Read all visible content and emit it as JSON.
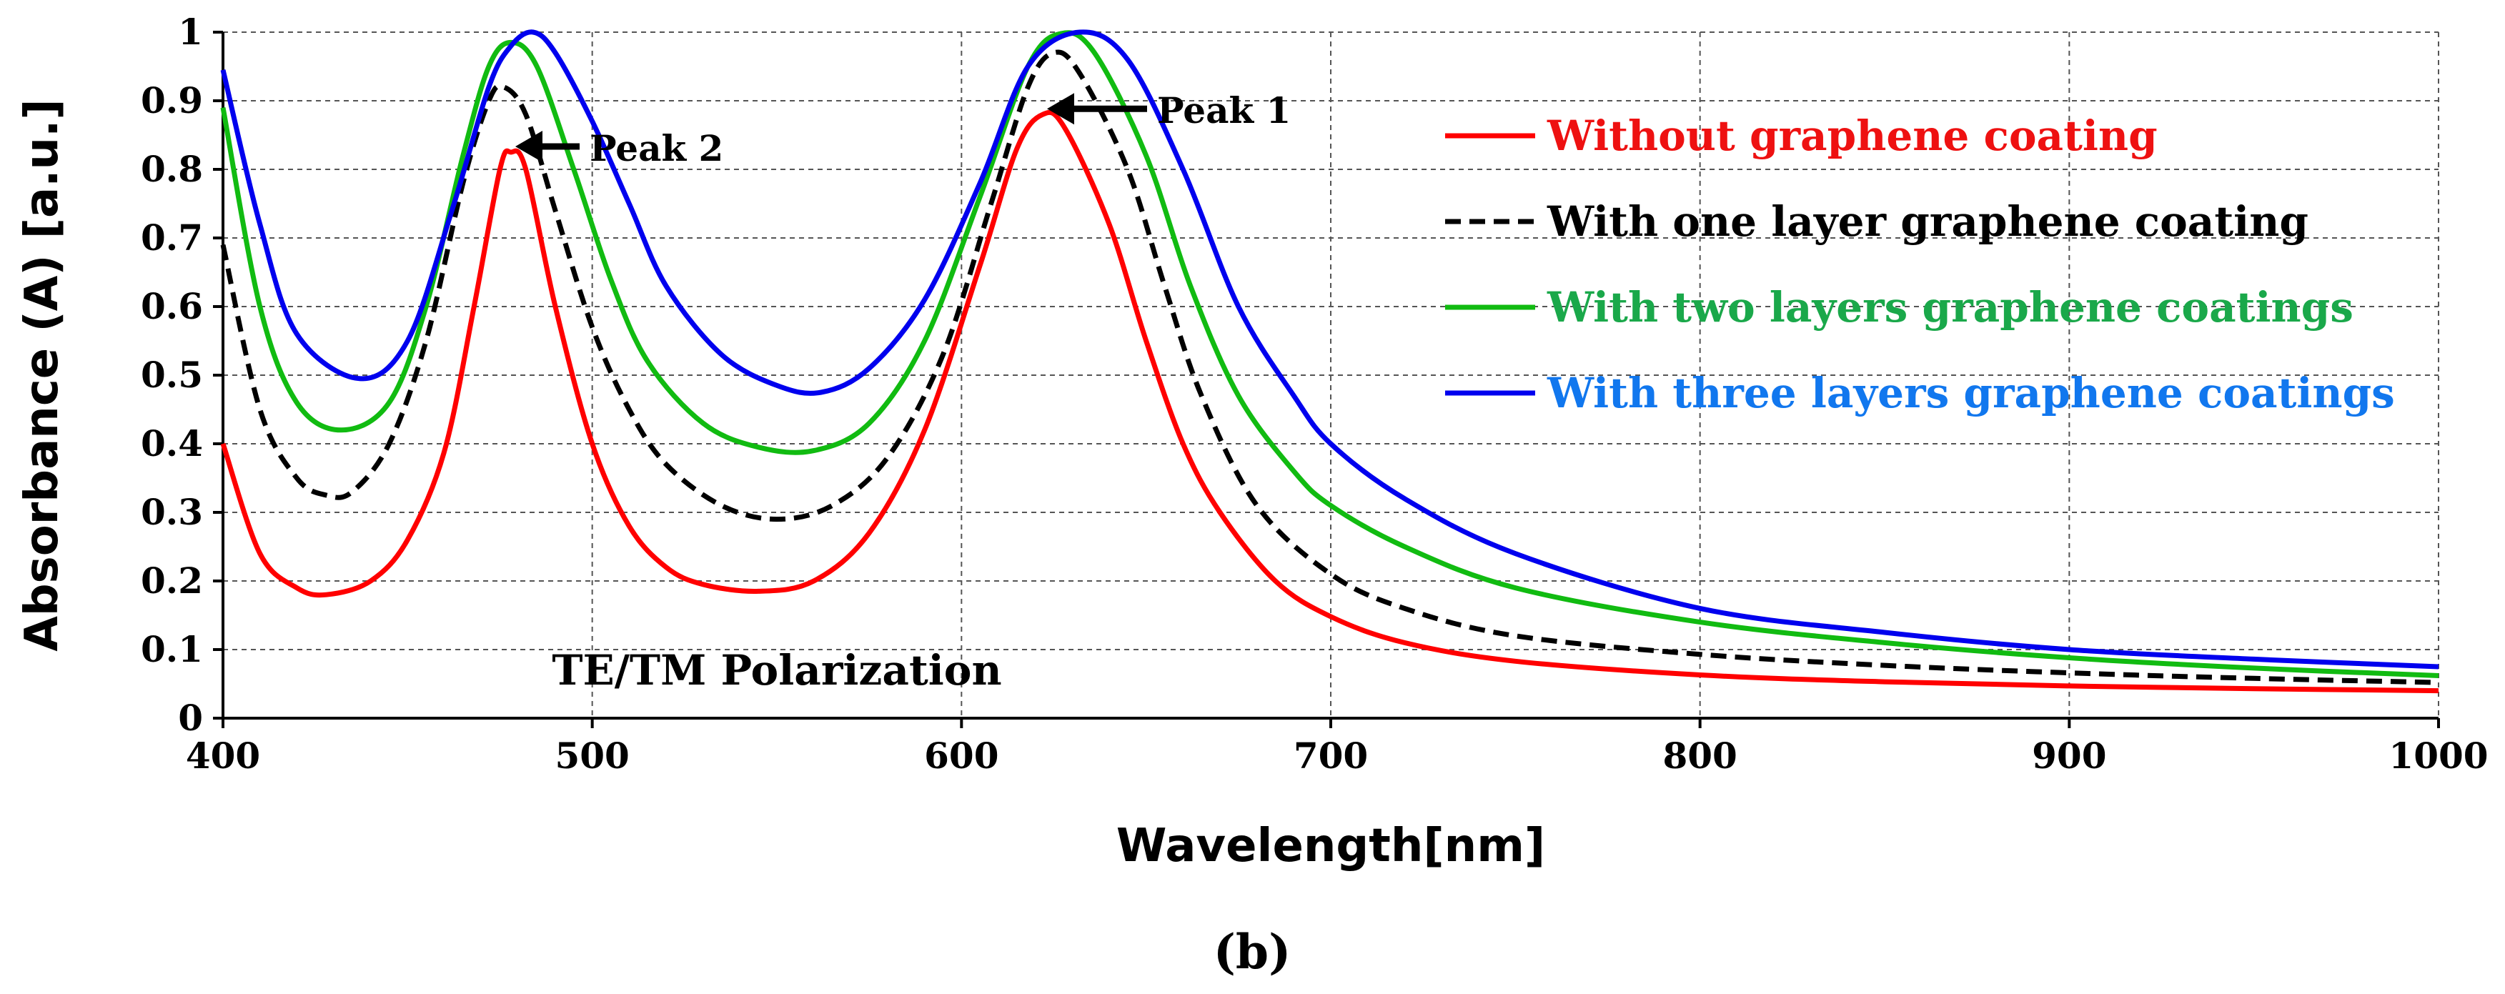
{
  "chart_data": {
    "type": "line",
    "title": "",
    "xlabel": "Wavelength[nm]",
    "ylabel": "Absorbance (A) [a.u.]",
    "xlim": [
      400,
      1000
    ],
    "ylim": [
      0,
      1
    ],
    "xticks": [
      400,
      500,
      600,
      700,
      800,
      900,
      1000
    ],
    "xtick_labels": [
      "400",
      "500",
      "600",
      "700",
      "800",
      "900",
      "1000"
    ],
    "yticks": [
      0,
      0.1,
      0.2,
      0.3,
      0.4,
      0.5,
      0.6,
      0.7,
      0.8,
      0.9,
      1
    ],
    "ytick_labels": [
      "0",
      "0.1",
      "0.2",
      "0.3",
      "0.4",
      "0.5",
      "0.6",
      "0.7",
      "0.8",
      "0.9",
      "1"
    ],
    "grid": true,
    "legend_position": "top-right",
    "series": [
      {
        "name": "Without graphene coating",
        "color": "#ff0000",
        "text_color": "#ee1111",
        "dashed": false,
        "points": [
          [
            400,
            0.4
          ],
          [
            410,
            0.24
          ],
          [
            420,
            0.19
          ],
          [
            428,
            0.18
          ],
          [
            440,
            0.2
          ],
          [
            450,
            0.26
          ],
          [
            460,
            0.39
          ],
          [
            468,
            0.6
          ],
          [
            475,
            0.8
          ],
          [
            478,
            0.825
          ],
          [
            482,
            0.8
          ],
          [
            490,
            0.6
          ],
          [
            500,
            0.4
          ],
          [
            510,
            0.28
          ],
          [
            520,
            0.22
          ],
          [
            530,
            0.195
          ],
          [
            545,
            0.185
          ],
          [
            560,
            0.2
          ],
          [
            575,
            0.27
          ],
          [
            590,
            0.42
          ],
          [
            605,
            0.66
          ],
          [
            615,
            0.83
          ],
          [
            622,
            0.88
          ],
          [
            628,
            0.86
          ],
          [
            640,
            0.72
          ],
          [
            650,
            0.55
          ],
          [
            660,
            0.4
          ],
          [
            670,
            0.3
          ],
          [
            685,
            0.2
          ],
          [
            700,
            0.148
          ],
          [
            720,
            0.11
          ],
          [
            750,
            0.083
          ],
          [
            800,
            0.063
          ],
          [
            850,
            0.053
          ],
          [
            900,
            0.047
          ],
          [
            950,
            0.043
          ],
          [
            1000,
            0.04
          ]
        ]
      },
      {
        "name": "With one layer graphene coating",
        "color": "#000000",
        "text_color": "#000000",
        "dashed": true,
        "points": [
          [
            400,
            0.69
          ],
          [
            410,
            0.45
          ],
          [
            420,
            0.35
          ],
          [
            428,
            0.325
          ],
          [
            435,
            0.33
          ],
          [
            445,
            0.4
          ],
          [
            455,
            0.55
          ],
          [
            465,
            0.78
          ],
          [
            472,
            0.9
          ],
          [
            476,
            0.92
          ],
          [
            482,
            0.88
          ],
          [
            490,
            0.74
          ],
          [
            500,
            0.57
          ],
          [
            510,
            0.45
          ],
          [
            520,
            0.37
          ],
          [
            535,
            0.31
          ],
          [
            550,
            0.29
          ],
          [
            565,
            0.31
          ],
          [
            580,
            0.38
          ],
          [
            595,
            0.53
          ],
          [
            608,
            0.75
          ],
          [
            618,
            0.92
          ],
          [
            625,
            0.97
          ],
          [
            632,
            0.94
          ],
          [
            645,
            0.8
          ],
          [
            655,
            0.63
          ],
          [
            665,
            0.47
          ],
          [
            680,
            0.31
          ],
          [
            700,
            0.21
          ],
          [
            720,
            0.16
          ],
          [
            750,
            0.12
          ],
          [
            800,
            0.093
          ],
          [
            850,
            0.077
          ],
          [
            900,
            0.066
          ],
          [
            950,
            0.058
          ],
          [
            1000,
            0.052
          ]
        ]
      },
      {
        "name": "With two layers graphene coatings",
        "color": "#11bb11",
        "text_color": "#1aa84a",
        "dashed": false,
        "points": [
          [
            400,
            0.89
          ],
          [
            410,
            0.6
          ],
          [
            420,
            0.46
          ],
          [
            432,
            0.42
          ],
          [
            445,
            0.46
          ],
          [
            455,
            0.6
          ],
          [
            465,
            0.82
          ],
          [
            472,
            0.95
          ],
          [
            478,
            0.985
          ],
          [
            485,
            0.95
          ],
          [
            495,
            0.8
          ],
          [
            505,
            0.64
          ],
          [
            515,
            0.52
          ],
          [
            530,
            0.43
          ],
          [
            545,
            0.395
          ],
          [
            560,
            0.39
          ],
          [
            575,
            0.43
          ],
          [
            590,
            0.55
          ],
          [
            605,
            0.76
          ],
          [
            618,
            0.95
          ],
          [
            627,
            0.998
          ],
          [
            636,
            0.97
          ],
          [
            650,
            0.82
          ],
          [
            662,
            0.63
          ],
          [
            675,
            0.47
          ],
          [
            690,
            0.36
          ],
          [
            700,
            0.31
          ],
          [
            720,
            0.25
          ],
          [
            750,
            0.19
          ],
          [
            800,
            0.14
          ],
          [
            850,
            0.11
          ],
          [
            900,
            0.088
          ],
          [
            950,
            0.073
          ],
          [
            1000,
            0.062
          ]
        ]
      },
      {
        "name": "With three layers graphene coatings",
        "color": "#0000ee",
        "text_color": "#1177ee",
        "dashed": false,
        "points": [
          [
            400,
            0.945
          ],
          [
            410,
            0.72
          ],
          [
            420,
            0.56
          ],
          [
            437,
            0.495
          ],
          [
            450,
            0.55
          ],
          [
            462,
            0.74
          ],
          [
            472,
            0.92
          ],
          [
            478,
            0.98
          ],
          [
            484,
            1.0
          ],
          [
            490,
            0.97
          ],
          [
            500,
            0.87
          ],
          [
            510,
            0.75
          ],
          [
            520,
            0.63
          ],
          [
            535,
            0.53
          ],
          [
            550,
            0.485
          ],
          [
            562,
            0.475
          ],
          [
            575,
            0.51
          ],
          [
            590,
            0.61
          ],
          [
            605,
            0.78
          ],
          [
            618,
            0.95
          ],
          [
            632,
            1.0
          ],
          [
            645,
            0.96
          ],
          [
            660,
            0.8
          ],
          [
            675,
            0.6
          ],
          [
            690,
            0.47
          ],
          [
            700,
            0.4
          ],
          [
            720,
            0.32
          ],
          [
            750,
            0.24
          ],
          [
            800,
            0.16
          ],
          [
            850,
            0.125
          ],
          [
            900,
            0.1
          ],
          [
            950,
            0.086
          ],
          [
            1000,
            0.075
          ]
        ]
      }
    ],
    "annotations": [
      {
        "text": "Peak 2",
        "x": 478,
        "y": 0.825
      },
      {
        "text": "Peak 1",
        "x": 622,
        "y": 0.88
      },
      {
        "text": "TE/TM Polarization",
        "x": 550,
        "y": 0.07
      }
    ]
  },
  "figure": {
    "panel_label": "(b)"
  }
}
